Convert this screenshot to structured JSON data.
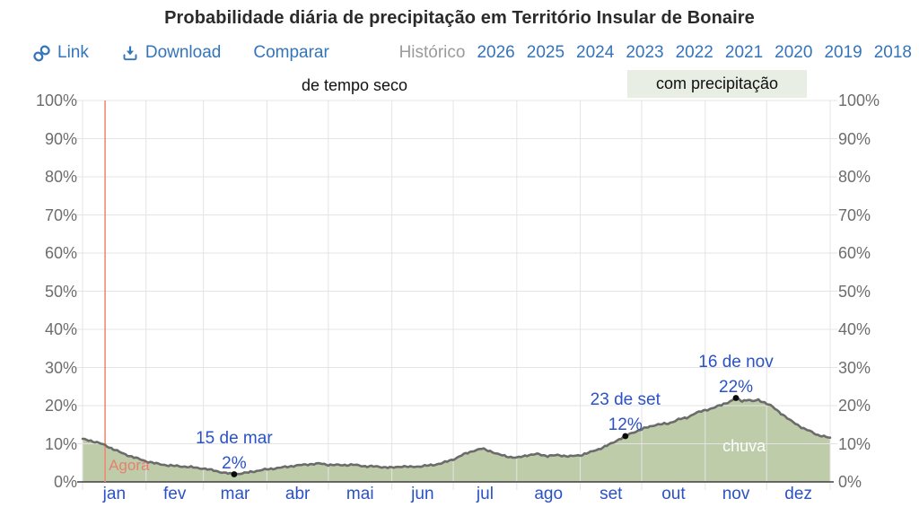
{
  "title": "Probabilidade diária de precipitação em Território Insular de Bonaire",
  "toolbar": {
    "link_label": "Link",
    "download_label": "Download",
    "comparar_label": "Comparar",
    "historico_label": "Histórico",
    "years": [
      "2026",
      "2025",
      "2024",
      "2023",
      "2022",
      "2021",
      "2020",
      "2019",
      "2018"
    ]
  },
  "colors": {
    "toolbar_link": "#3474bb",
    "chart_text_blue": "#2a52c5",
    "axis_label_gray": "#6d6d6d",
    "muted_gray": "#9b9b9b",
    "area_fill": "#beccaa",
    "curve_line": "#6b6b6b",
    "grid_line": "#e4e4e4",
    "axis_line": "#3e3e3e",
    "now_line": "#ee8a76",
    "now_text": "#e5816c",
    "dot": "#0a0a0a",
    "wet_band_bg": "#e8eee3",
    "area_label_text": "#ffffff"
  },
  "chart_data": {
    "type": "area",
    "title": "Probabilidade diária de precipitação em Território Insular de Bonaire",
    "unit": "%",
    "ylim": [
      0,
      100
    ],
    "grid": true,
    "y_tick_labels": [
      "0%",
      "10%",
      "20%",
      "30%",
      "40%",
      "50%",
      "60%",
      "70%",
      "80%",
      "90%",
      "100%"
    ],
    "months": [
      "jan",
      "fev",
      "mar",
      "abr",
      "mai",
      "jun",
      "jul",
      "ago",
      "set",
      "out",
      "nov",
      "dez"
    ],
    "month_days": [
      31,
      28,
      31,
      30,
      31,
      30,
      31,
      31,
      30,
      31,
      30,
      31
    ],
    "series": [
      {
        "name": "probabilidade de precipitação diária",
        "points_day_value": [
          [
            0,
            11.2
          ],
          [
            4,
            10.8
          ],
          [
            8,
            10.2
          ],
          [
            11,
            9.6
          ],
          [
            15,
            8.6
          ],
          [
            19,
            7.6
          ],
          [
            23,
            6.8
          ],
          [
            27,
            6.1
          ],
          [
            31,
            5.4
          ],
          [
            36,
            4.8
          ],
          [
            42,
            4.3
          ],
          [
            48,
            4.1
          ],
          [
            54,
            3.8
          ],
          [
            59,
            3.5
          ],
          [
            64,
            3.0
          ],
          [
            69,
            2.4
          ],
          [
            74,
            2.0
          ],
          [
            79,
            2.3
          ],
          [
            84,
            2.8
          ],
          [
            90,
            3.3
          ],
          [
            96,
            3.7
          ],
          [
            103,
            4.2
          ],
          [
            110,
            4.6
          ],
          [
            116,
            4.8
          ],
          [
            120,
            4.5
          ],
          [
            126,
            4.4
          ],
          [
            132,
            4.5
          ],
          [
            138,
            4.1
          ],
          [
            144,
            4.0
          ],
          [
            151,
            3.7
          ],
          [
            156,
            4.1
          ],
          [
            160,
            3.9
          ],
          [
            165,
            4.1
          ],
          [
            171,
            4.4
          ],
          [
            176,
            5.0
          ],
          [
            181,
            5.9
          ],
          [
            186,
            7.2
          ],
          [
            191,
            8.2
          ],
          [
            195,
            8.7
          ],
          [
            199,
            8.1
          ],
          [
            203,
            7.2
          ],
          [
            208,
            6.6
          ],
          [
            212,
            6.3
          ],
          [
            217,
            7.0
          ],
          [
            222,
            7.3
          ],
          [
            227,
            6.8
          ],
          [
            232,
            7.0
          ],
          [
            238,
            6.7
          ],
          [
            243,
            7.0
          ],
          [
            248,
            7.8
          ],
          [
            253,
            8.8
          ],
          [
            258,
            10.0
          ],
          [
            262,
            11.2
          ],
          [
            265,
            12.0
          ],
          [
            269,
            13.0
          ],
          [
            274,
            14.0
          ],
          [
            280,
            15.0
          ],
          [
            286,
            15.3
          ],
          [
            291,
            16.4
          ],
          [
            295,
            16.8
          ],
          [
            299,
            18.0
          ],
          [
            304,
            18.8
          ],
          [
            308,
            19.4
          ],
          [
            312,
            20.2
          ],
          [
            317,
            21.3
          ],
          [
            319,
            22.0
          ],
          [
            322,
            21.2
          ],
          [
            325,
            21.6
          ],
          [
            327,
            21.1
          ],
          [
            330,
            21.5
          ],
          [
            333,
            20.8
          ],
          [
            336,
            20.0
          ],
          [
            339,
            18.8
          ],
          [
            342,
            17.6
          ],
          [
            345,
            16.3
          ],
          [
            349,
            15.0
          ],
          [
            352,
            14.0
          ],
          [
            356,
            13.1
          ],
          [
            359,
            12.3
          ],
          [
            362,
            11.9
          ],
          [
            365,
            11.5
          ]
        ]
      }
    ],
    "annotations": [
      {
        "date": "15 de mar",
        "display_value": "2%",
        "day": 74,
        "value": 2
      },
      {
        "date": "23 de set",
        "display_value": "12%",
        "day": 265,
        "value": 12
      },
      {
        "date": "16 de nov",
        "display_value": "22%",
        "day": 319,
        "value": 22
      }
    ],
    "now_marker": {
      "label": "Agora",
      "day": 11
    },
    "area_label": {
      "text": "chuva",
      "day": 323,
      "value_y": 9.5
    },
    "season_bands": {
      "dry_label": "de tempo seco",
      "wet_label": "com precipitação"
    }
  }
}
